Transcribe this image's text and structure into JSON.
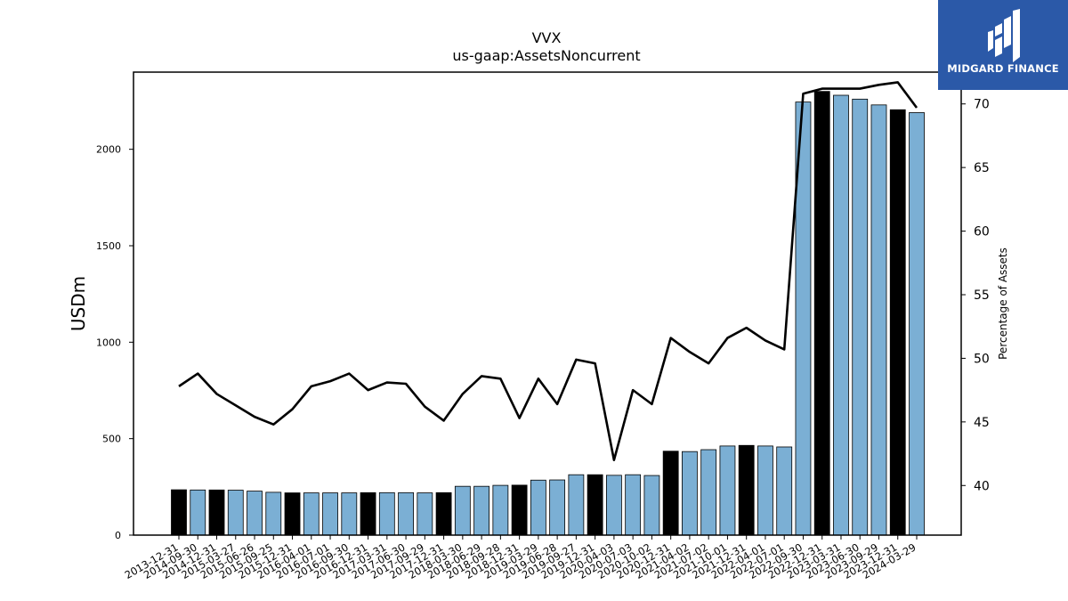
{
  "brand": {
    "name": "MIDGARD FINANCE",
    "color": "#2b59a8"
  },
  "chart_data": {
    "type": "bar",
    "title": "VVX",
    "subtitle": "us-gaap:AssetsNoncurrent",
    "ylabel": "USDm",
    "y2label": "Percentage of Assets",
    "ylim": [
      0,
      2400
    ],
    "y2lim": [
      36.1,
      72.5
    ],
    "yticks": [
      0,
      500,
      1000,
      1500,
      2000
    ],
    "y2ticks": [
      40,
      45,
      50,
      55,
      60,
      65,
      70
    ],
    "colors": {
      "bar_annual": "#000000",
      "bar_quarter": "#7bafd4",
      "line": "#000000"
    },
    "categories": [
      "2013-12-31",
      "2014-09-30",
      "2014-12-31",
      "2015-03-27",
      "2015-06-26",
      "2015-09-25",
      "2015-12-31",
      "2016-04-01",
      "2016-07-01",
      "2016-09-30",
      "2016-12-31",
      "2017-03-31",
      "2017-06-30",
      "2017-09-29",
      "2017-12-31",
      "2018-03-30",
      "2018-06-29",
      "2018-09-28",
      "2018-12-31",
      "2019-03-29",
      "2019-06-28",
      "2019-09-27",
      "2019-12-31",
      "2020-04-03",
      "2020-07-03",
      "2020-10-02",
      "2020-12-31",
      "2021-04-02",
      "2021-07-02",
      "2021-10-01",
      "2021-12-31",
      "2022-04-01",
      "2022-07-01",
      "2022-09-30",
      "2022-12-31",
      "2023-03-31",
      "2023-06-30",
      "2023-09-29",
      "2023-12-31",
      "2024-03-29"
    ],
    "series": [
      {
        "kind": "bar",
        "values": [
          235,
          234,
          234,
          233,
          228,
          222,
          219,
          219,
          219,
          219,
          220,
          220,
          220,
          219,
          220,
          253,
          253,
          258,
          259,
          285,
          286,
          313,
          313,
          310,
          313,
          309,
          435,
          433,
          443,
          462,
          465,
          462,
          457,
          2245,
          2300,
          2280,
          2260,
          2230,
          2205,
          2190
        ],
        "annual": [
          true,
          false,
          true,
          false,
          false,
          false,
          true,
          false,
          false,
          false,
          true,
          false,
          false,
          false,
          true,
          false,
          false,
          false,
          true,
          false,
          false,
          false,
          true,
          false,
          false,
          false,
          true,
          false,
          false,
          false,
          true,
          false,
          false,
          false,
          true,
          false,
          false,
          false,
          true,
          false
        ]
      },
      {
        "kind": "line",
        "axis": "right",
        "values": [
          47.8,
          48.8,
          47.2,
          46.3,
          45.4,
          44.8,
          46.0,
          47.8,
          48.2,
          48.8,
          47.5,
          48.1,
          48.0,
          46.2,
          45.1,
          47.2,
          48.6,
          48.4,
          45.3,
          48.4,
          46.4,
          49.9,
          49.6,
          42.0,
          47.5,
          46.4,
          51.6,
          50.5,
          49.6,
          51.6,
          52.4,
          51.4,
          50.7,
          70.8,
          71.2,
          71.2,
          71.2,
          71.5,
          71.7,
          69.7
        ]
      }
    ]
  }
}
